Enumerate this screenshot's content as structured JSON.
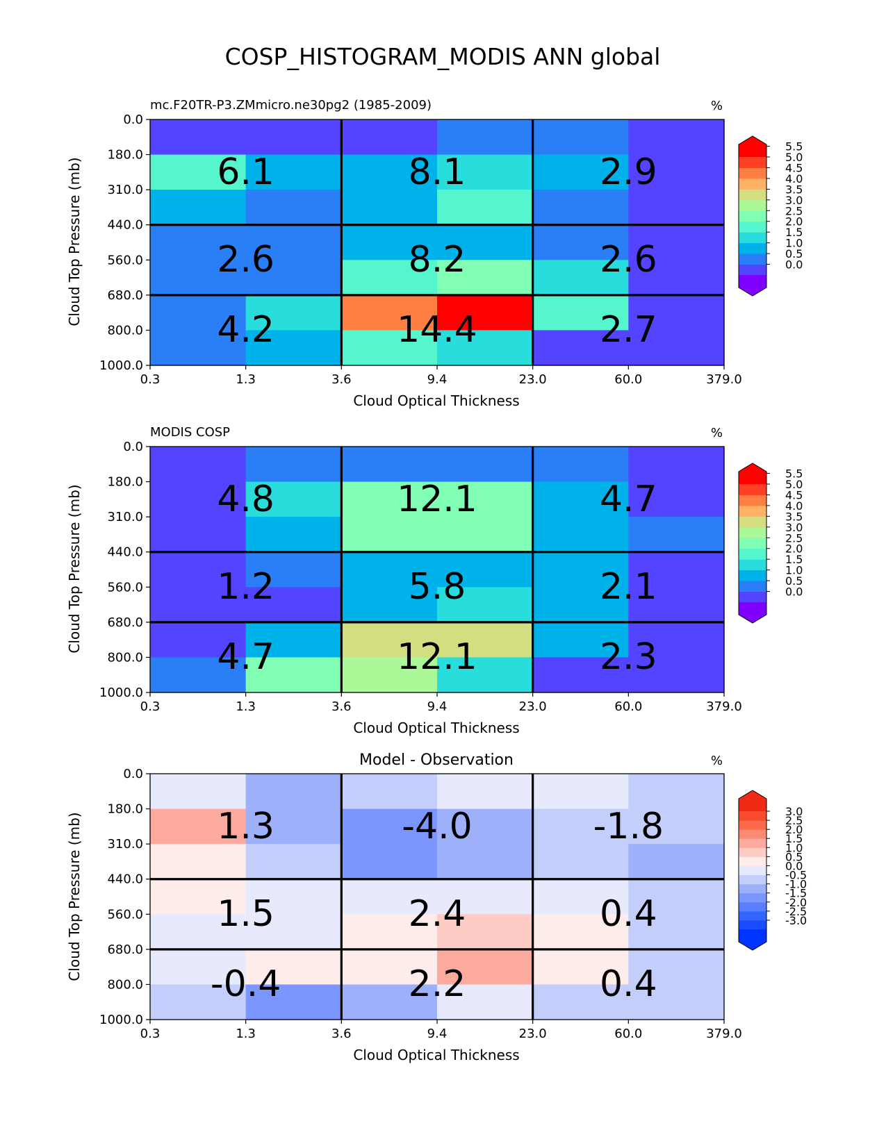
{
  "figure": {
    "title": "COSP_HISTOGRAM_MODIS ANN global"
  },
  "chart_data": [
    {
      "type": "heatmap",
      "title": "mc.F20TR-P3.ZMmicro.ne30pg2 (1985-2009)",
      "title_position": "left",
      "units": "%",
      "xlabel": "Cloud Optical Thickness",
      "ylabel": "Cloud Top Pressure (mb)",
      "x_ticks": [
        "0.3",
        "1.3",
        "3.6",
        "9.4",
        "23.0",
        "60.0",
        "379.0"
      ],
      "y_ticks": [
        "0.0",
        "180.0",
        "310.0",
        "440.0",
        "560.0",
        "680.0",
        "800.0",
        "1000.0"
      ],
      "grid_cells_top_to_bottom": [
        [
          0.3,
          0.3,
          0.3,
          0.8,
          0.8,
          0.3
        ],
        [
          2.2,
          1.3,
          1.3,
          1.8,
          1.3,
          0.3
        ],
        [
          1.3,
          0.8,
          1.3,
          2.3,
          0.8,
          0.3
        ],
        [
          0.8,
          0.8,
          1.3,
          1.3,
          0.8,
          0.3
        ],
        [
          0.8,
          0.8,
          2.2,
          2.8,
          1.8,
          0.3
        ],
        [
          0.8,
          1.8,
          4.8,
          5.8,
          2.2,
          0.3
        ],
        [
          0.8,
          1.3,
          2.2,
          1.8,
          0.3,
          0.3
        ]
      ],
      "summary_labels": [
        [
          "6.1",
          "8.1",
          "2.9"
        ],
        [
          "2.6",
          "8.2",
          "2.6"
        ],
        [
          "4.2",
          "14.4",
          "2.7"
        ]
      ],
      "colorbar": {
        "levels": [
          0.0,
          0.5,
          1.0,
          1.5,
          2.0,
          2.5,
          3.0,
          3.5,
          4.0,
          4.5,
          5.0,
          5.5
        ],
        "tick_labels": [
          "5.5",
          "5.0",
          "4.5",
          "4.0",
          "3.5",
          "3.0",
          "2.5",
          "2.0",
          "1.5",
          "1.0",
          "0.5",
          "0.0"
        ],
        "colors": [
          "#7f00ff",
          "#5544ff",
          "#2a7ff6",
          "#00b2ea",
          "#2adddd",
          "#55f5cd",
          "#80feb3",
          "#aaf897",
          "#d4dd80",
          "#ffb265",
          "#ff7f42",
          "#ff4025",
          "#ff0000"
        ]
      }
    },
    {
      "type": "heatmap",
      "title": "MODIS COSP",
      "title_position": "left",
      "units": "%",
      "xlabel": "Cloud Optical Thickness",
      "ylabel": "Cloud Top Pressure (mb)",
      "x_ticks": [
        "0.3",
        "1.3",
        "3.6",
        "9.4",
        "23.0",
        "60.0",
        "379.0"
      ],
      "y_ticks": [
        "0.0",
        "180.0",
        "310.0",
        "440.0",
        "560.0",
        "680.0",
        "800.0",
        "1000.0"
      ],
      "grid_cells_top_to_bottom": [
        [
          0.3,
          0.8,
          0.8,
          0.8,
          0.8,
          0.3
        ],
        [
          0.3,
          1.8,
          2.8,
          2.8,
          1.3,
          0.3
        ],
        [
          0.3,
          1.3,
          2.8,
          2.8,
          1.3,
          0.8
        ],
        [
          0.3,
          0.8,
          1.3,
          1.3,
          1.3,
          0.3
        ],
        [
          0.3,
          0.3,
          1.3,
          1.8,
          1.3,
          0.3
        ],
        [
          0.3,
          1.3,
          3.8,
          3.8,
          1.3,
          0.3
        ],
        [
          0.8,
          2.8,
          3.3,
          1.8,
          0.3,
          0.3
        ]
      ],
      "summary_labels": [
        [
          "4.8",
          "12.1",
          "4.7"
        ],
        [
          "1.2",
          "5.8",
          "2.1"
        ],
        [
          "4.7",
          "12.1",
          "2.3"
        ]
      ],
      "colorbar": {
        "levels": [
          0.0,
          0.5,
          1.0,
          1.5,
          2.0,
          2.5,
          3.0,
          3.5,
          4.0,
          4.5,
          5.0,
          5.5
        ],
        "tick_labels": [
          "5.5",
          "5.0",
          "4.5",
          "4.0",
          "3.5",
          "3.0",
          "2.5",
          "2.0",
          "1.5",
          "1.0",
          "0.5",
          "0.0"
        ],
        "colors": [
          "#7f00ff",
          "#5544ff",
          "#2a7ff6",
          "#00b2ea",
          "#2adddd",
          "#55f5cd",
          "#80feb3",
          "#aaf897",
          "#d4dd80",
          "#ffb265",
          "#ff7f42",
          "#ff4025",
          "#ff0000"
        ]
      }
    },
    {
      "type": "heatmap",
      "title": "Model - Observation",
      "title_position": "center",
      "units": "%",
      "xlabel": "Cloud Optical Thickness",
      "ylabel": "Cloud Top Pressure (mb)",
      "x_ticks": [
        "0.3",
        "1.3",
        "3.6",
        "9.4",
        "23.0",
        "60.0",
        "379.0"
      ],
      "y_ticks": [
        "0.0",
        "180.0",
        "310.0",
        "440.0",
        "560.0",
        "680.0",
        "800.0",
        "1000.0"
      ],
      "grid_cells_top_to_bottom": [
        [
          0.1,
          -0.6,
          -0.1,
          0.1,
          0.1,
          -0.1
        ],
        [
          1.6,
          -0.6,
          -1.1,
          -0.6,
          -0.1,
          -0.1
        ],
        [
          0.6,
          -0.1,
          -1.1,
          -0.6,
          -0.1,
          -0.6
        ],
        [
          0.6,
          0.1,
          0.1,
          0.1,
          0.1,
          -0.1
        ],
        [
          0.1,
          0.1,
          0.6,
          1.1,
          0.6,
          -0.1
        ],
        [
          0.1,
          0.6,
          0.6,
          1.6,
          0.6,
          -0.1
        ],
        [
          -0.1,
          -1.1,
          -0.6,
          0.1,
          -0.1,
          -0.1
        ]
      ],
      "summary_labels": [
        [
          "1.3",
          "-4.0",
          "-1.8"
        ],
        [
          "1.5",
          "2.4",
          "0.4"
        ],
        [
          "-0.4",
          "2.2",
          "0.4"
        ]
      ],
      "colorbar": {
        "levels": [
          -3.0,
          -2.5,
          -2.0,
          -1.5,
          -1.0,
          -0.5,
          0.0,
          0.5,
          1.0,
          1.5,
          2.0,
          2.5,
          3.0
        ],
        "tick_labels": [
          "3.0",
          "2.5",
          "2.0",
          "1.5",
          "1.0",
          "0.5",
          "0.0",
          "-0.5",
          "-1.0",
          "-1.5",
          "-2.0",
          "-2.5",
          "-3.0"
        ],
        "colors": [
          "#0034ff",
          "#1a4dff",
          "#3366ff",
          "#5b7eff",
          "#7b97ff",
          "#9fb0fb",
          "#c3cefb",
          "#e6eafc",
          "#fdecea",
          "#fdccc5",
          "#fcaa9d",
          "#fb8a74",
          "#fb6a4a",
          "#f84a2c",
          "#f02a14"
        ]
      }
    }
  ]
}
